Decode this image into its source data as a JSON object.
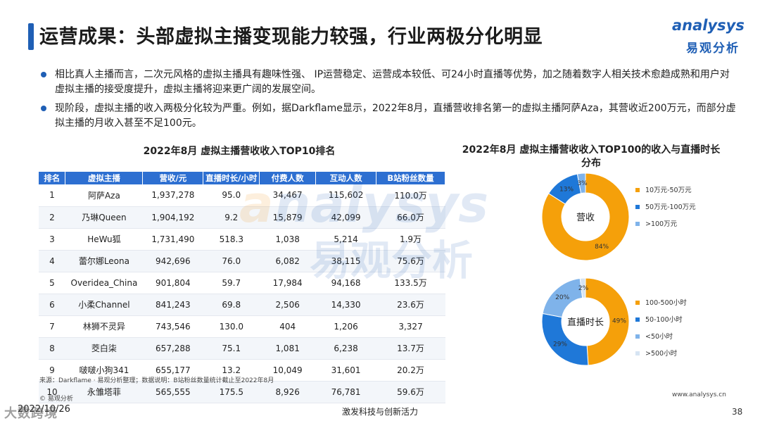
{
  "header": {
    "title": "运营成果：头部虚拟主播变现能力较强，行业两极分化明显",
    "logo_en_a": "a",
    "logo_en_rest": "nalysys",
    "logo_cn": "易观分析"
  },
  "bullets": [
    "相比真人主播而言，二次元风格的虚拟主播具有趣味性强、 IP运营稳定、运营成本较低、可24小时直播等优势，加之随着数字人相关技术愈趋成熟和用户对虚拟主播的接受度提升，虚拟主播将迎来更广阔的发展空间。",
    "现阶段，虚拟主播的收入两极分化较为严重。例如，据Darkflame显示，2022年8月，直播营收排名第一的虚拟主播阿萨Aza，其营收近200万元，而部分虚拟主播的月收入甚至不足100元。"
  ],
  "table": {
    "title": "2022年8月 虚拟主播营收收入TOP10排名",
    "headers": [
      "排名",
      "虚拟主播",
      "营收/元",
      "直播时长/小时",
      "付费人数",
      "互动人数",
      "B站粉丝数量"
    ],
    "rows": [
      [
        "1",
        "阿萨Aza",
        "1,937,278",
        "95.0",
        "34,467",
        "115,602",
        "110.0万"
      ],
      [
        "2",
        "乃琳Queen",
        "1,904,192",
        "9.2",
        "15,879",
        "42,099",
        "66.0万"
      ],
      [
        "3",
        "HeWu狐",
        "1,731,490",
        "518.3",
        "1,038",
        "5,214",
        "1.9万"
      ],
      [
        "4",
        "蕾尔娜Leona",
        "942,696",
        "76.0",
        "6,082",
        "38,115",
        "75.6万"
      ],
      [
        "5",
        "Overidea_China",
        "901,804",
        "59.7",
        "17,984",
        "94,168",
        "133.5万"
      ],
      [
        "6",
        "小柔Channel",
        "841,243",
        "69.8",
        "2,506",
        "14,330",
        "23.6万"
      ],
      [
        "7",
        "林狮不灵异",
        "743,546",
        "130.0",
        "404",
        "1,206",
        "3,327"
      ],
      [
        "8",
        "茭白柒",
        "657,288",
        "75.1",
        "1,081",
        "6,238",
        "13.7万"
      ],
      [
        "9",
        "啵啵小狗341",
        "655,177",
        "13.2",
        "10,049",
        "31,601",
        "20.2万"
      ],
      [
        "10",
        "永雏塔菲",
        "565,555",
        "175.5",
        "8,926",
        "76,781",
        "59.6万"
      ]
    ]
  },
  "chart_data": [
    {
      "type": "pie",
      "title": "2022年8月 虚拟主播营收收入TOP100的收入与直播时长分布",
      "center_label": "营收",
      "categories": [
        "10万元-50万元",
        "50万元-100万元",
        ">100万元"
      ],
      "values": [
        84,
        13,
        3
      ],
      "value_labels": [
        "84%",
        "13%",
        "3%"
      ],
      "colors": [
        "#f5a00a",
        "#1f78d8",
        "#7fb3ea"
      ],
      "legend_position": "right"
    },
    {
      "type": "pie",
      "center_label": "直播时长",
      "categories": [
        "100-500小时",
        "50-100小时",
        "<50小时",
        ">500小时"
      ],
      "values": [
        49,
        29,
        20,
        2
      ],
      "value_labels": [
        "49%",
        "29%",
        "20%",
        "2%"
      ],
      "colors": [
        "#f5a00a",
        "#1f78d8",
        "#7fb3ea",
        "#d6e4f3"
      ],
      "legend_position": "right"
    }
  ],
  "footer": {
    "source": "来源：Darkflame · 易观分析整理；数据说明：B站粉丝数量统计截止至2022年8月",
    "copyright": "© 易观分析",
    "date": "2022/10/26",
    "watermark": "大数跨境",
    "slogan": "激发科技与创新活力",
    "website": "www.analysys.cn",
    "page": "38"
  }
}
